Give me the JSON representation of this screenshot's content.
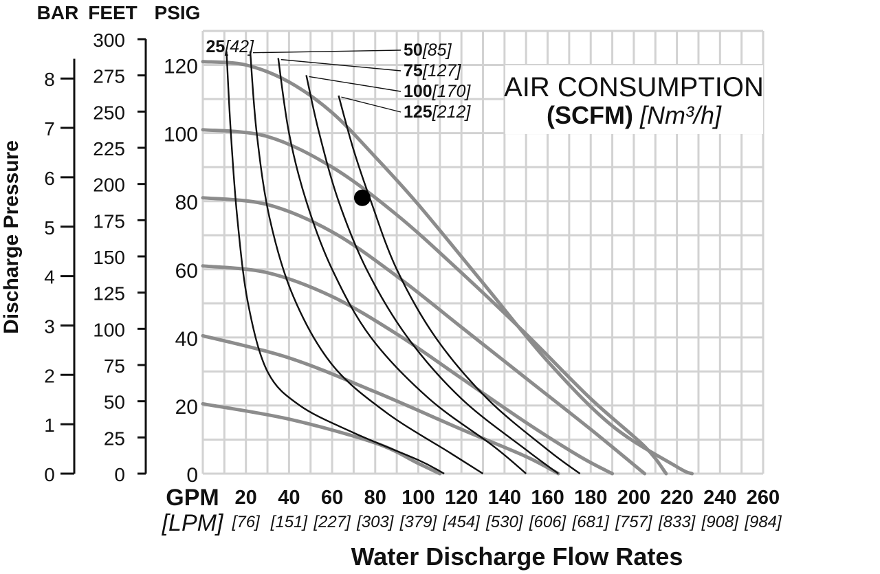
{
  "chart_data": {
    "type": "line",
    "title": "AIR CONSUMPTION",
    "title_unit_bold": "(SCFM)",
    "title_unit_italic": "[Nm³/h]",
    "xlabel": "Water Discharge Flow Rates",
    "x_unit_primary": "GPM",
    "x_unit_secondary": "[LPM]",
    "ylabel": "Discharge Pressure",
    "y_units": [
      "BAR",
      "FEET",
      "PSIG"
    ],
    "xlim": [
      0,
      260
    ],
    "ylim": [
      0,
      130
    ],
    "grid": true,
    "x_ticks": [
      {
        "gpm": 20,
        "lpm": "[76]"
      },
      {
        "gpm": 40,
        "lpm": "[151]"
      },
      {
        "gpm": 60,
        "lpm": "[227]"
      },
      {
        "gpm": 80,
        "lpm": "[303]"
      },
      {
        "gpm": 100,
        "lpm": "[379]"
      },
      {
        "gpm": 120,
        "lpm": "[454]"
      },
      {
        "gpm": 140,
        "lpm": "[530]"
      },
      {
        "gpm": 160,
        "lpm": "[606]"
      },
      {
        "gpm": 180,
        "lpm": "[681]"
      },
      {
        "gpm": 200,
        "lpm": "[757]"
      },
      {
        "gpm": 220,
        "lpm": "[833]"
      },
      {
        "gpm": 240,
        "lpm": "[908]"
      },
      {
        "gpm": 260,
        "lpm": "[984]"
      }
    ],
    "psig_ticks": [
      0,
      20,
      40,
      60,
      80,
      100,
      120
    ],
    "feet_ticks": [
      0,
      25,
      50,
      75,
      100,
      125,
      150,
      175,
      200,
      225,
      250,
      275,
      300
    ],
    "bar_ticks": [
      0,
      1,
      2,
      3,
      4,
      5,
      6,
      7,
      8
    ],
    "series": [
      {
        "kind": "pressure_curve",
        "points": [
          [
            0,
            20.5
          ],
          [
            40,
            16
          ],
          [
            80,
            9
          ],
          [
            100,
            3
          ],
          [
            110,
            0
          ]
        ]
      },
      {
        "kind": "pressure_curve",
        "points": [
          [
            0,
            40.5
          ],
          [
            40,
            34
          ],
          [
            80,
            24
          ],
          [
            120,
            13
          ],
          [
            150,
            5
          ],
          [
            165,
            0
          ]
        ]
      },
      {
        "kind": "pressure_curve",
        "points": [
          [
            0,
            61
          ],
          [
            30,
            59
          ],
          [
            60,
            52
          ],
          [
            90,
            41
          ],
          [
            120,
            28
          ],
          [
            150,
            15
          ],
          [
            175,
            5
          ],
          [
            190,
            0
          ]
        ]
      },
      {
        "kind": "pressure_curve",
        "points": [
          [
            0,
            81
          ],
          [
            30,
            79
          ],
          [
            60,
            71
          ],
          [
            90,
            58
          ],
          [
            120,
            43
          ],
          [
            150,
            28
          ],
          [
            180,
            13
          ],
          [
            205,
            0
          ]
        ]
      },
      {
        "kind": "pressure_curve",
        "points": [
          [
            0,
            101
          ],
          [
            30,
            99
          ],
          [
            60,
            90
          ],
          [
            90,
            76
          ],
          [
            120,
            59
          ],
          [
            150,
            41
          ],
          [
            180,
            22
          ],
          [
            205,
            8
          ],
          [
            215,
            0
          ]
        ]
      },
      {
        "kind": "pressure_curve",
        "points": [
          [
            0,
            121
          ],
          [
            20,
            120
          ],
          [
            40,
            115
          ],
          [
            60,
            106
          ],
          [
            80,
            93
          ],
          [
            100,
            79
          ],
          [
            130,
            56
          ],
          [
            160,
            33
          ],
          [
            190,
            14
          ],
          [
            220,
            2
          ],
          [
            227,
            0
          ]
        ]
      },
      {
        "kind": "air_curve",
        "label_bold": "25",
        "label_italic": "[42]",
        "points": [
          [
            11,
            124
          ],
          [
            13,
            100
          ],
          [
            16,
            75
          ],
          [
            21,
            50
          ],
          [
            30,
            30
          ],
          [
            45,
            20
          ],
          [
            70,
            12
          ],
          [
            100,
            4
          ],
          [
            112,
            0
          ]
        ]
      },
      {
        "kind": "air_curve",
        "label_bold": "50",
        "label_italic": "[85]",
        "points": [
          [
            22,
            124
          ],
          [
            25,
            100
          ],
          [
            31,
            75
          ],
          [
            42,
            52
          ],
          [
            60,
            32
          ],
          [
            85,
            18
          ],
          [
            115,
            6
          ],
          [
            130,
            0
          ]
        ]
      },
      {
        "kind": "air_curve",
        "label_bold": "75",
        "label_italic": "[127]",
        "points": [
          [
            35,
            122
          ],
          [
            40,
            100
          ],
          [
            48,
            80
          ],
          [
            60,
            60
          ],
          [
            78,
            40
          ],
          [
            105,
            22
          ],
          [
            135,
            8
          ],
          [
            150,
            0
          ]
        ]
      },
      {
        "kind": "air_curve",
        "label_bold": "100",
        "label_italic": "[170]",
        "points": [
          [
            48,
            117
          ],
          [
            54,
            100
          ],
          [
            63,
            80
          ],
          [
            76,
            60
          ],
          [
            95,
            40
          ],
          [
            120,
            22
          ],
          [
            150,
            7
          ],
          [
            165,
            0
          ]
        ]
      },
      {
        "kind": "air_curve",
        "label_bold": "125",
        "label_italic": "[212]",
        "points": [
          [
            63,
            111
          ],
          [
            70,
            95
          ],
          [
            78,
            80
          ],
          [
            90,
            60
          ],
          [
            108,
            40
          ],
          [
            132,
            22
          ],
          [
            160,
            7
          ],
          [
            175,
            0
          ]
        ]
      }
    ],
    "marker_point": [
      74,
      81
    ]
  }
}
